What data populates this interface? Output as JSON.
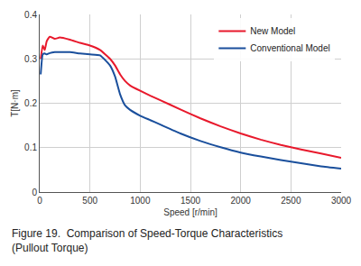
{
  "chart_data": {
    "type": "line",
    "title": [
      "Figure 19.  Comparison of Speed-Torque Characteristics",
      "(Pullout Torque)"
    ],
    "x_label": "Speed [r/min]",
    "y_label": "T[N·m]",
    "x": [
      10,
      30,
      50,
      70,
      100,
      150,
      200,
      300,
      400,
      500,
      600,
      700,
      750,
      800,
      850,
      900,
      1000,
      1100,
      1200,
      1400,
      1600,
      1800,
      2000,
      2200,
      2400,
      2600,
      2800,
      3000
    ],
    "series": [
      {
        "name": "New Model",
        "color": "#e8192c",
        "values": [
          0.3,
          0.33,
          0.32,
          0.34,
          0.35,
          0.345,
          0.348,
          0.343,
          0.336,
          0.33,
          0.32,
          0.3,
          0.285,
          0.265,
          0.25,
          0.24,
          0.228,
          0.217,
          0.207,
          0.186,
          0.166,
          0.148,
          0.132,
          0.118,
          0.106,
          0.096,
          0.087,
          0.077
        ]
      },
      {
        "name": "Conventional Model",
        "color": "#1a4f9c",
        "values": [
          0.265,
          0.31,
          0.312,
          0.31,
          0.313,
          0.315,
          0.315,
          0.315,
          0.312,
          0.31,
          0.308,
          0.285,
          0.26,
          0.22,
          0.195,
          0.185,
          0.172,
          0.162,
          0.152,
          0.132,
          0.115,
          0.101,
          0.089,
          0.08,
          0.072,
          0.065,
          0.058,
          0.053
        ]
      }
    ],
    "xlim": [
      0,
      3000
    ],
    "xticks": [
      0,
      500,
      1000,
      1500,
      2000,
      2500,
      3000
    ],
    "ylim": [
      0,
      0.4
    ],
    "yticks": [
      0,
      0.1,
      0.2,
      0.3,
      0.4
    ],
    "grid": true,
    "legend": "upper right"
  }
}
